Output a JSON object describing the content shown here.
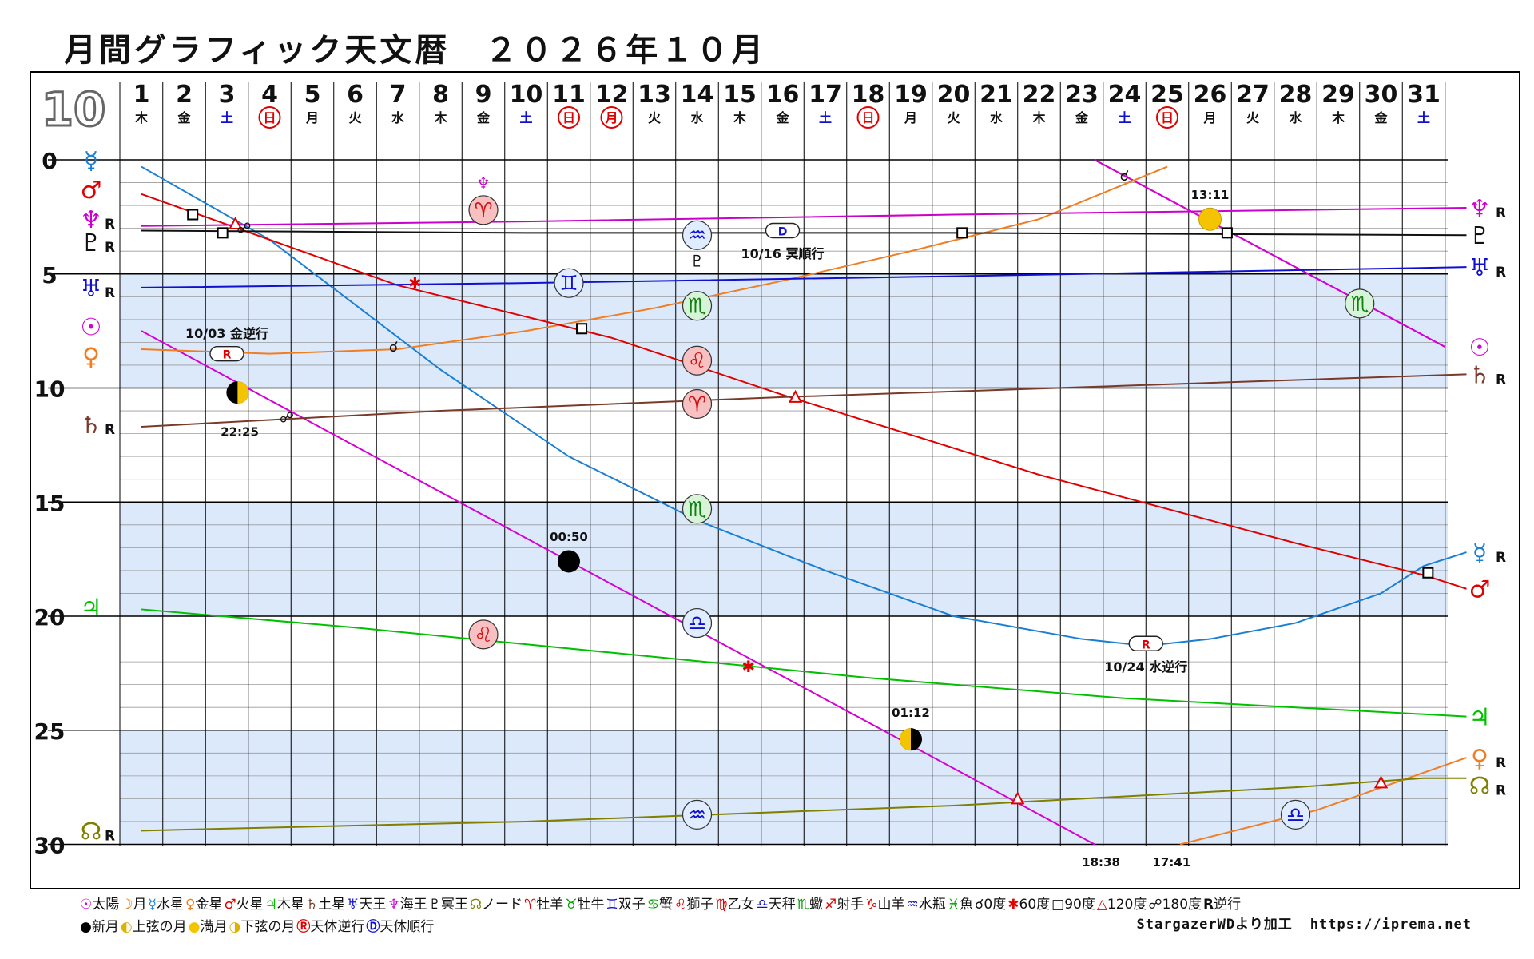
{
  "title": "月間グラフィック天文暦　２０２６年１０月",
  "month_label": "10",
  "chart_data": {
    "type": "line",
    "x_days": [
      1,
      2,
      3,
      4,
      5,
      6,
      7,
      8,
      9,
      10,
      11,
      12,
      13,
      14,
      15,
      16,
      17,
      18,
      19,
      20,
      21,
      22,
      23,
      24,
      25,
      26,
      27,
      28,
      29,
      30,
      31
    ],
    "weekdays": [
      "木",
      "金",
      "土",
      "日",
      "月",
      "火",
      "水",
      "木",
      "金",
      "土",
      "日",
      "月",
      "火",
      "水",
      "木",
      "金",
      "土",
      "日",
      "月",
      "火",
      "水",
      "木",
      "金",
      "土",
      "日",
      "月",
      "火",
      "水",
      "木",
      "金",
      "土"
    ],
    "sunday_flags": [
      4,
      11,
      18,
      25
    ],
    "holiday_flags": [
      12
    ],
    "saturday_flags": [
      3,
      10,
      17,
      24,
      31
    ],
    "y_ticks": [
      0,
      5,
      10,
      15,
      20,
      25,
      30
    ],
    "ylim": [
      0,
      30
    ],
    "series": [
      {
        "name": "Sun",
        "color": "#d400d4",
        "points": [
          [
            23.3,
            0
          ],
          [
            31.5,
            8.2
          ]
        ]
      },
      {
        "name": "Moon",
        "color": "#d400d4",
        "points": [
          [
            1,
            7.5
          ],
          [
            23.3,
            30
          ]
        ]
      },
      {
        "name": "Moon",
        "color": "#d400d4",
        "points": [
          [
            23.3,
            0
          ],
          [
            31.5,
            8.2
          ]
        ]
      },
      {
        "name": "Mercury",
        "color": "#1a7fd4",
        "points": [
          [
            1,
            0.3
          ],
          [
            4,
            3.5
          ],
          [
            8,
            9.2
          ],
          [
            11,
            13.0
          ],
          [
            14,
            15.8
          ],
          [
            17,
            18.0
          ],
          [
            20,
            20.0
          ],
          [
            23,
            21.0
          ],
          [
            24.5,
            21.3
          ],
          [
            26,
            21.0
          ],
          [
            28,
            20.3
          ],
          [
            30,
            19.0
          ],
          [
            31,
            17.8
          ],
          [
            32,
            17.2
          ]
        ]
      },
      {
        "name": "Venus",
        "color": "#f07d22",
        "points": [
          [
            1,
            8.3
          ],
          [
            4,
            8.5
          ],
          [
            7,
            8.3
          ],
          [
            10,
            7.5
          ],
          [
            13,
            6.5
          ],
          [
            16,
            5.3
          ],
          [
            19,
            4.0
          ],
          [
            22,
            2.6
          ],
          [
            25,
            0.3
          ]
        ]
      },
      {
        "name": "Venus",
        "color": "#f07d22",
        "points": [
          [
            25.3,
            30
          ],
          [
            28.5,
            28.5
          ],
          [
            32,
            26.2
          ]
        ]
      },
      {
        "name": "Mars",
        "color": "#e00000",
        "points": [
          [
            1,
            1.5
          ],
          [
            7,
            5.5
          ],
          [
            12,
            7.8
          ],
          [
            16,
            10.3
          ],
          [
            22,
            13.8
          ],
          [
            28,
            16.8
          ],
          [
            31,
            18.2
          ],
          [
            32,
            18.8
          ]
        ]
      },
      {
        "name": "Jupiter",
        "color": "#00c000",
        "points": [
          [
            1,
            19.7
          ],
          [
            6,
            20.5
          ],
          [
            12,
            21.6
          ],
          [
            18,
            22.7
          ],
          [
            24,
            23.6
          ],
          [
            32,
            24.4
          ]
        ]
      },
      {
        "name": "Saturn",
        "color": "#7a3a2a",
        "points": [
          [
            1,
            11.7
          ],
          [
            8,
            11.0
          ],
          [
            16,
            10.4
          ],
          [
            24,
            9.9
          ],
          [
            32,
            9.4
          ]
        ]
      },
      {
        "name": "Uranus",
        "color": "#1010d0",
        "points": [
          [
            1,
            5.6
          ],
          [
            10,
            5.4
          ],
          [
            20,
            5.1
          ],
          [
            32,
            4.7
          ]
        ]
      },
      {
        "name": "Neptune",
        "color": "#cc00cc",
        "points": [
          [
            1,
            2.9
          ],
          [
            10,
            2.7
          ],
          [
            20,
            2.4
          ],
          [
            32,
            2.1
          ]
        ]
      },
      {
        "name": "Pluto",
        "color": "#111111",
        "points": [
          [
            1,
            3.1
          ],
          [
            10,
            3.2
          ],
          [
            20,
            3.2
          ],
          [
            32,
            3.3
          ]
        ]
      },
      {
        "name": "Node",
        "color": "#7f7f00",
        "points": [
          [
            1,
            29.4
          ],
          [
            10,
            29.0
          ],
          [
            20,
            28.3
          ],
          [
            28,
            27.5
          ],
          [
            31,
            27.1
          ],
          [
            32,
            27.1
          ]
        ]
      }
    ],
    "left_labels": [
      {
        "y": 0,
        "glyph": "☿",
        "color": "#1a7fd4",
        "r": ""
      },
      {
        "y": 1.3,
        "glyph": "♂",
        "color": "#e00000",
        "r": ""
      },
      {
        "y": 2.6,
        "glyph": "♆",
        "color": "#cc00cc",
        "r": "R"
      },
      {
        "y": 3.6,
        "glyph": "♇",
        "color": "#111111",
        "r": "R"
      },
      {
        "y": 5.6,
        "glyph": "♅",
        "color": "#1010d0",
        "r": "R"
      },
      {
        "y": 7.3,
        "glyph": "☉",
        "color": "#d400d4",
        "r": ""
      },
      {
        "y": 8.6,
        "glyph": "♀",
        "color": "#f07d22",
        "r": ""
      },
      {
        "y": 11.6,
        "glyph": "♄",
        "color": "#7a3a2a",
        "r": "R"
      },
      {
        "y": 19.6,
        "glyph": "♃",
        "color": "#00c000",
        "r": ""
      },
      {
        "y": 29.4,
        "glyph": "☊",
        "color": "#7f7f00",
        "r": "R"
      }
    ],
    "right_labels": [
      {
        "y": 2.1,
        "glyph": "♆",
        "color": "#cc00cc",
        "r": "R"
      },
      {
        "y": 3.3,
        "glyph": "♇",
        "color": "#111111",
        "r": ""
      },
      {
        "y": 4.7,
        "glyph": "♅",
        "color": "#1010d0",
        "r": "R"
      },
      {
        "y": 8.2,
        "glyph": "☉",
        "color": "#d400d4",
        "r": ""
      },
      {
        "y": 9.4,
        "glyph": "♄",
        "color": "#7a3a2a",
        "r": "R"
      },
      {
        "y": 17.2,
        "glyph": "☿",
        "color": "#1a7fd4",
        "r": "R"
      },
      {
        "y": 18.8,
        "glyph": "♂",
        "color": "#e00000",
        "r": ""
      },
      {
        "y": 24.4,
        "glyph": "♃",
        "color": "#00c000",
        "r": ""
      },
      {
        "y": 26.2,
        "glyph": "♀",
        "color": "#f07d22",
        "r": "R"
      },
      {
        "y": 27.4,
        "glyph": "☊",
        "color": "#7f7f00",
        "r": "R"
      }
    ],
    "sign_ingress": [
      {
        "x": 9,
        "y": 2.2,
        "glyph": "♈",
        "fill": "#f8c0c0",
        "color": "#d01010"
      },
      {
        "x": 11,
        "y": 5.4,
        "glyph": "♊",
        "fill": "#e0ecff",
        "color": "#1010d0"
      },
      {
        "x": 14,
        "y": 3.3,
        "glyph": "♒",
        "fill": "#e0ecff",
        "color": "#1010d0"
      },
      {
        "x": 14,
        "y": 6.4,
        "glyph": "♏",
        "fill": "#d8f4d8",
        "color": "#108010"
      },
      {
        "x": 14,
        "y": 8.8,
        "glyph": "♌",
        "fill": "#f8c0c0",
        "color": "#d01010"
      },
      {
        "x": 14,
        "y": 10.7,
        "glyph": "♈",
        "fill": "#f8c0c0",
        "color": "#d01010"
      },
      {
        "x": 14,
        "y": 15.3,
        "glyph": "♏",
        "fill": "#d8f4d8",
        "color": "#108010"
      },
      {
        "x": 14,
        "y": 20.3,
        "glyph": "♎",
        "fill": "#e0ecff",
        "color": "#1010d0"
      },
      {
        "x": 14,
        "y": 28.7,
        "glyph": "♒",
        "fill": "#e0ecff",
        "color": "#1010d0"
      },
      {
        "x": 9,
        "y": 20.8,
        "glyph": "♌",
        "fill": "#f8c0c0",
        "color": "#d01010"
      },
      {
        "x": 29.5,
        "y": 6.3,
        "glyph": "♏",
        "fill": "#d8f4d8",
        "color": "#108010"
      },
      {
        "x": 28,
        "y": 28.7,
        "glyph": "♎",
        "fill": "#e0ecff",
        "color": "#1010d0"
      }
    ],
    "moon_phases": [
      {
        "x": 3.25,
        "y": 10.2,
        "phase": "first_quarter",
        "time": "22:25",
        "tx": 3.3,
        "ty": 11.9
      },
      {
        "x": 11,
        "y": 17.6,
        "phase": "new",
        "time": "00:50",
        "tx": 11,
        "ty": 16.5
      },
      {
        "x": 26,
        "y": 2.6,
        "phase": "full",
        "time": "13:11",
        "tx": 26,
        "ty": 1.5
      },
      {
        "x": 19,
        "y": 25.4,
        "phase": "last_quarter",
        "time": "01:12",
        "tx": 19,
        "ty": 24.2
      }
    ],
    "bottom_times": [
      {
        "x": 23.45,
        "text": "18:38"
      },
      {
        "x": 25.1,
        "text": "17:41"
      }
    ],
    "stations": [
      {
        "x": 3,
        "y": 8.5,
        "letter": "R",
        "label": "10/03 金逆行",
        "lx": 3,
        "ly": 7.6
      },
      {
        "x": 16,
        "y": 3.1,
        "letter": "D",
        "label": "10/16 冥順行",
        "lx": 16,
        "ly": 4.1
      },
      {
        "x": 24.5,
        "y": 21.2,
        "letter": "R",
        "label": "10/24 水逆行",
        "lx": 24.5,
        "ly": 22.2
      }
    ],
    "aspects": [
      {
        "x": 2.2,
        "y": 2.4,
        "type": "square"
      },
      {
        "x": 2.9,
        "y": 3.2,
        "type": "square"
      },
      {
        "x": 3.2,
        "y": 2.8,
        "type": "trine"
      },
      {
        "x": 3.4,
        "y": 3.0,
        "type": "opposition"
      },
      {
        "x": 7.4,
        "y": 5.4,
        "type": "sextile"
      },
      {
        "x": 6.9,
        "y": 8.2,
        "type": "conjunction"
      },
      {
        "x": 11.3,
        "y": 7.4,
        "type": "square"
      },
      {
        "x": 4.4,
        "y": 11.3,
        "type": "opposition"
      },
      {
        "x": 16.3,
        "y": 10.4,
        "type": "trine"
      },
      {
        "x": 20.2,
        "y": 3.2,
        "type": "square"
      },
      {
        "x": 24,
        "y": 0.7,
        "type": "conjunction"
      },
      {
        "x": 26.4,
        "y": 3.2,
        "type": "square"
      },
      {
        "x": 15.2,
        "y": 22.2,
        "type": "sextile"
      },
      {
        "x": 21.5,
        "y": 28.0,
        "type": "trine"
      },
      {
        "x": 30,
        "y": 27.3,
        "type": "trine"
      },
      {
        "x": 31.1,
        "y": 18.1,
        "type": "square"
      }
    ],
    "pluto_mark": {
      "x": 14,
      "y": 4.4,
      "glyph": "♇"
    },
    "neptune_mark": {
      "x": 9,
      "y": 1.0,
      "glyph": "♆"
    }
  },
  "legend": {
    "row1": [
      {
        "sym": "☉",
        "color": "#d400d4",
        "text": "太陽"
      },
      {
        "sym": "☽",
        "color": "#e07000",
        "text": "月"
      },
      {
        "sym": "☿",
        "color": "#1a7fd4",
        "text": "水星"
      },
      {
        "sym": "♀",
        "color": "#f07d22",
        "text": "金星"
      },
      {
        "sym": "♂",
        "color": "#e00000",
        "text": "火星"
      },
      {
        "sym": "♃",
        "color": "#00c000",
        "text": "木星"
      },
      {
        "sym": "♄",
        "color": "#7a3a2a",
        "text": "土星"
      },
      {
        "sym": "♅",
        "color": "#1010d0",
        "text": "天王"
      },
      {
        "sym": "♆",
        "color": "#cc00cc",
        "text": "海王"
      },
      {
        "sym": "♇",
        "color": "#111111",
        "text": "冥王"
      },
      {
        "sym": "☊",
        "color": "#7f7f00",
        "text": "ノード"
      },
      {
        "sym": "♈",
        "color": "#e00000",
        "text": "牡羊"
      },
      {
        "sym": "♉",
        "color": "#00a000",
        "text": "牡牛"
      },
      {
        "sym": "♊",
        "color": "#1010d0",
        "text": "双子"
      },
      {
        "sym": "♋",
        "color": "#00a000",
        "text": "蟹"
      },
      {
        "sym": "♌",
        "color": "#e00000",
        "text": "獅子"
      },
      {
        "sym": "♍",
        "color": "#e00000",
        "text": "乙女"
      },
      {
        "sym": "♎",
        "color": "#1010d0",
        "text": "天秤"
      },
      {
        "sym": "♏",
        "color": "#00a000",
        "text": "蠍"
      },
      {
        "sym": "♐",
        "color": "#e00000",
        "text": "射手"
      },
      {
        "sym": "♑",
        "color": "#e00000",
        "text": "山羊"
      },
      {
        "sym": "♒",
        "color": "#1010d0",
        "text": "水瓶"
      },
      {
        "sym": "♓",
        "color": "#00a000",
        "text": "魚"
      },
      {
        "sym": "☌",
        "color": "#111111",
        "text": "0度"
      },
      {
        "sym": "✱",
        "color": "#e00000",
        "text": "60度"
      },
      {
        "sym": "□",
        "color": "#111111",
        "text": "90度"
      },
      {
        "sym": "△",
        "color": "#e00000",
        "text": "120度"
      },
      {
        "sym": "☍",
        "color": "#111111",
        "text": "180度"
      },
      {
        "sym": "R",
        "color": "#111111",
        "text": "逆行"
      }
    ],
    "row2": [
      {
        "sym": "●",
        "color": "#000000",
        "text": "新月"
      },
      {
        "sym": "◐",
        "color": "#e0b000",
        "text": "上弦の月"
      },
      {
        "sym": "●",
        "color": "#f5c400",
        "text": "満月"
      },
      {
        "sym": "◑",
        "color": "#e0b000",
        "text": "下弦の月"
      },
      {
        "sym": "Ⓡ",
        "color": "#e00000",
        "text": "天体逆行"
      },
      {
        "sym": "Ⓓ",
        "color": "#1010d0",
        "text": "天体順行"
      }
    ],
    "credit_source": "StargazerWDより加工",
    "credit_url": "https://iprema.net"
  }
}
